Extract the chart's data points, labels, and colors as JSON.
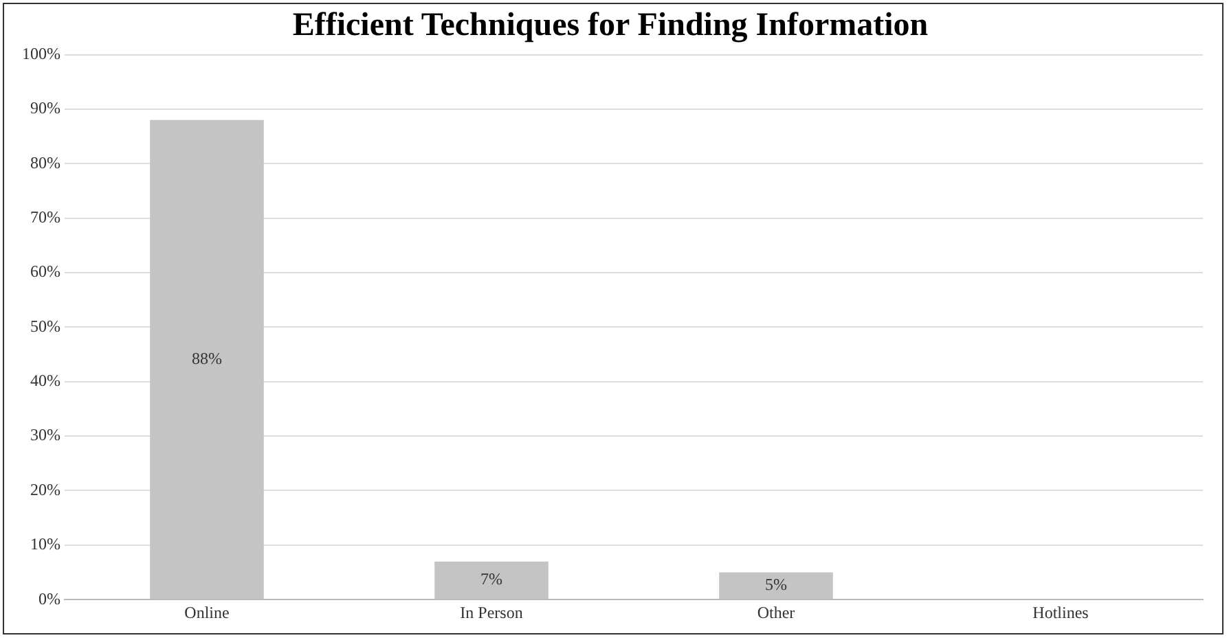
{
  "chart_data": {
    "type": "bar",
    "title": "Efficient Techniques for Finding Information",
    "categories": [
      "Online",
      "In Person",
      "Other",
      "Hotlines"
    ],
    "values": [
      88,
      7,
      5,
      0
    ],
    "color": "#c4c4c4",
    "value_labels": [
      "88%",
      "7%",
      "5%",
      null
    ],
    "ylim": [
      0,
      100
    ],
    "yticks": [
      {
        "value": 0,
        "label": "0%"
      },
      {
        "value": 10,
        "label": "10%"
      },
      {
        "value": 20,
        "label": "20%"
      },
      {
        "value": 30,
        "label": "30%"
      },
      {
        "value": 40,
        "label": "40%"
      },
      {
        "value": 50,
        "label": "50%"
      },
      {
        "value": 60,
        "label": "60%"
      },
      {
        "value": 70,
        "label": "70%"
      },
      {
        "value": 80,
        "label": "80%"
      },
      {
        "value": 90,
        "label": "90%"
      },
      {
        "value": 100,
        "label": "100%"
      }
    ],
    "grid": "y",
    "legend": false
  }
}
